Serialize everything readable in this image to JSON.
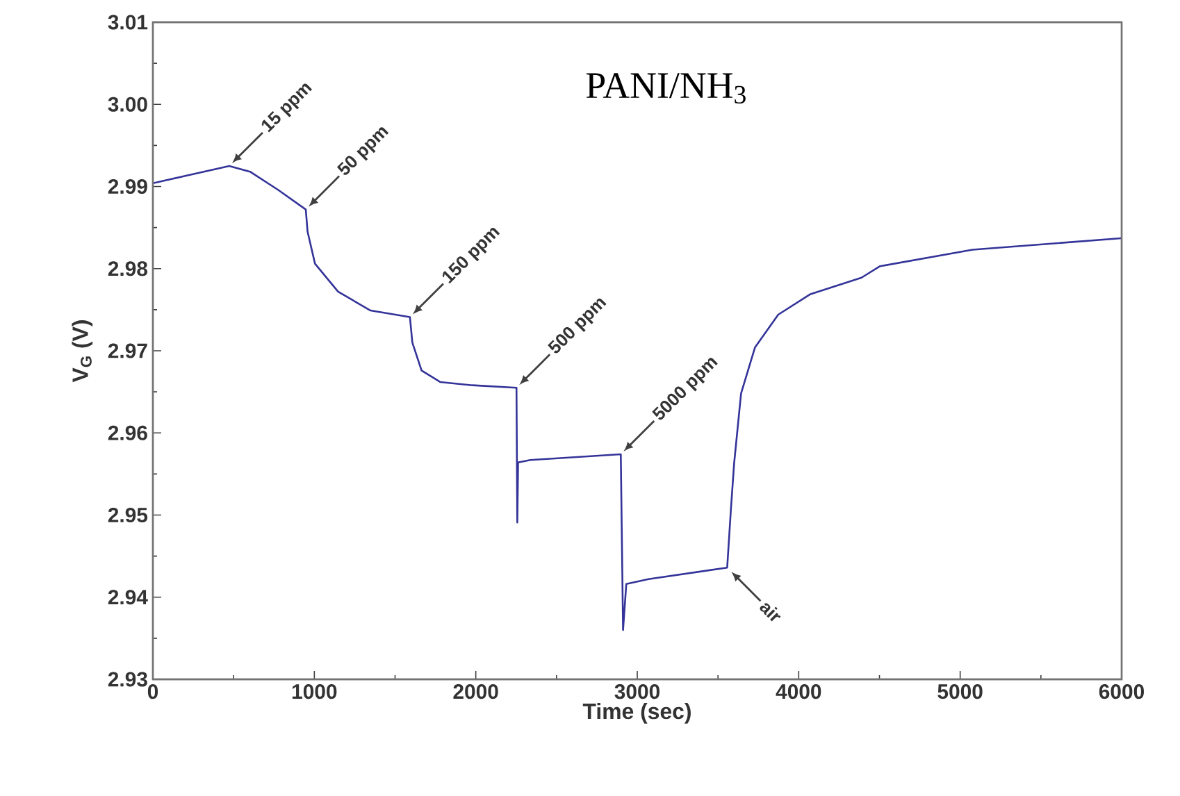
{
  "chart_data": {
    "type": "line",
    "title": "PANI/NH$_{3}$",
    "xlabel": "Time (sec)",
    "ylabel": "V$_{G}$ (V)",
    "xlim": [
      0,
      6000
    ],
    "ylim": [
      2.93,
      3.01
    ],
    "xticks": [
      0,
      1000,
      2000,
      3000,
      4000,
      5000,
      6000
    ],
    "yticks": [
      2.93,
      2.94,
      2.95,
      2.96,
      2.97,
      2.98,
      2.99,
      {
        "value": 3.0,
        "label": "3.00"
      },
      3.01
    ],
    "marker": "none",
    "line_style": "solid",
    "series": [
      {
        "color": "#333399",
        "x": [
          0,
          473,
          602,
          775,
          947,
          958,
          1004,
          1147,
          1348,
          1592,
          1607,
          1664,
          1779,
          1979,
          2252,
          2257,
          2262,
          2338,
          2898,
          2912,
          2932,
          3070,
          3557,
          3580,
          3600,
          3643,
          3729,
          3873,
          4073,
          4389,
          4504,
          5077,
          5996
        ],
        "values": [
          2.9904,
          2.9925,
          2.9918,
          2.9896,
          2.9872,
          2.9845,
          2.9806,
          2.9772,
          2.9749,
          2.9741,
          2.971,
          2.9676,
          2.9662,
          2.9658,
          2.9655,
          2.9491,
          2.9564,
          2.9567,
          2.9574,
          2.936,
          2.9416,
          2.9422,
          2.9436,
          2.9507,
          2.9563,
          2.9648,
          2.9704,
          2.9744,
          2.9769,
          2.9789,
          2.9803,
          2.9823,
          2.9837
        ]
      }
    ],
    "annotations": [
      {
        "text": "15 ppm",
        "x": 473,
        "y": 2.9925
      },
      {
        "text": "50 ppm",
        "x": 947,
        "y": 2.9872
      },
      {
        "text": "150 ppm",
        "x": 1592,
        "y": 2.9741
      },
      {
        "text": "500 ppm",
        "x": 2252,
        "y": 2.9655
      },
      {
        "text": "5000 ppm",
        "x": 2898,
        "y": 2.9574
      },
      {
        "text": "air",
        "x": 3557,
        "y": 2.9436
      }
    ]
  }
}
